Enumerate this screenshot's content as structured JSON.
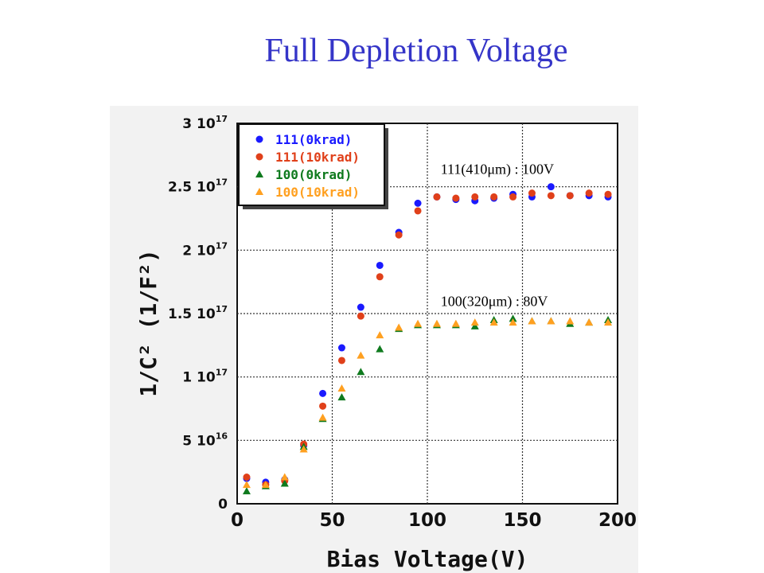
{
  "slide": {
    "title": "Full Depletion Voltage"
  },
  "chart_data": {
    "type": "scatter",
    "xlabel": "Bias Voltage(V)",
    "ylabel": "1/C² (1/F²)",
    "xlim": [
      0,
      200
    ],
    "ylim": [
      0,
      3e+17
    ],
    "grid": true,
    "legend_position": "top-left",
    "x_ticks": [
      {
        "value": 0,
        "label": "0"
      },
      {
        "value": 50,
        "label": "50"
      },
      {
        "value": 100,
        "label": "100"
      },
      {
        "value": 150,
        "label": "150"
      },
      {
        "value": 200,
        "label": "200"
      }
    ],
    "y_ticks": [
      {
        "value": 0,
        "mant": "0",
        "exp": ""
      },
      {
        "value": 5e+16,
        "mant": "5 10",
        "exp": "16"
      },
      {
        "value": 1e+17,
        "mant": "1 10",
        "exp": "17"
      },
      {
        "value": 1.5e+17,
        "mant": "1.5 10",
        "exp": "17"
      },
      {
        "value": 2e+17,
        "mant": "2 10",
        "exp": "17"
      },
      {
        "value": 2.5e+17,
        "mant": "2.5 10",
        "exp": "17"
      },
      {
        "value": 3e+17,
        "mant": "3 10",
        "exp": "17"
      }
    ],
    "x": [
      5,
      15,
      25,
      35,
      45,
      55,
      65,
      75,
      85,
      95,
      105,
      115,
      125,
      135,
      145,
      155,
      165,
      175,
      185,
      195
    ],
    "series": [
      {
        "name": "111(0krad)",
        "marker": "circle",
        "color": "#1a1aff",
        "values": [
          2e+16,
          1.7e+16,
          1.9e+16,
          4.6e+16,
          8.7e+16,
          1.23e+17,
          1.55e+17,
          1.88e+17,
          2.14e+17,
          2.37e+17,
          2.42e+17,
          2.4e+17,
          2.39e+17,
          2.41e+17,
          2.44e+17,
          2.42e+17,
          2.5e+17,
          2.43e+17,
          2.43e+17,
          2.42e+17
        ]
      },
      {
        "name": "111(10krad)",
        "marker": "circle",
        "color": "#e0401a",
        "values": [
          2.1e+16,
          1.5e+16,
          1.8e+16,
          4.7e+16,
          7.7e+16,
          1.13e+17,
          1.48e+17,
          1.79e+17,
          2.12e+17,
          2.31e+17,
          2.42e+17,
          2.41e+17,
          2.42e+17,
          2.42e+17,
          2.42e+17,
          2.45e+17,
          2.43e+17,
          2.43e+17,
          2.45e+17,
          2.44e+17
        ]
      },
      {
        "name": "100(0krad)",
        "marker": "triangle",
        "color": "#0f7a1e",
        "values": [
          1e+16,
          1.4e+16,
          1.6e+16,
          4.5e+16,
          6.7e+16,
          8.4e+16,
          1.04e+17,
          1.22e+17,
          1.38e+17,
          1.41e+17,
          1.41e+17,
          1.41e+17,
          1.4e+17,
          1.45e+17,
          1.46e+17,
          1.44e+17,
          1.44e+17,
          1.42e+17,
          1.43e+17,
          1.45e+17
        ]
      },
      {
        "name": "100(10krad)",
        "marker": "triangle",
        "color": "#ffa020",
        "values": [
          1.5e+16,
          1.5e+16,
          2.1e+16,
          4.3e+16,
          6.8e+16,
          9.1e+16,
          1.17e+17,
          1.33e+17,
          1.39e+17,
          1.42e+17,
          1.42e+17,
          1.42e+17,
          1.43e+17,
          1.43e+17,
          1.43e+17,
          1.44e+17,
          1.44e+17,
          1.44e+17,
          1.43e+17,
          1.43e+17
        ]
      }
    ],
    "annotations": [
      {
        "text": "111(410μm) : 100V",
        "x": 107,
        "y": 2.6e+17
      },
      {
        "text": "100(320μm) : 80V",
        "x": 107,
        "y": 1.56e+17
      }
    ]
  }
}
